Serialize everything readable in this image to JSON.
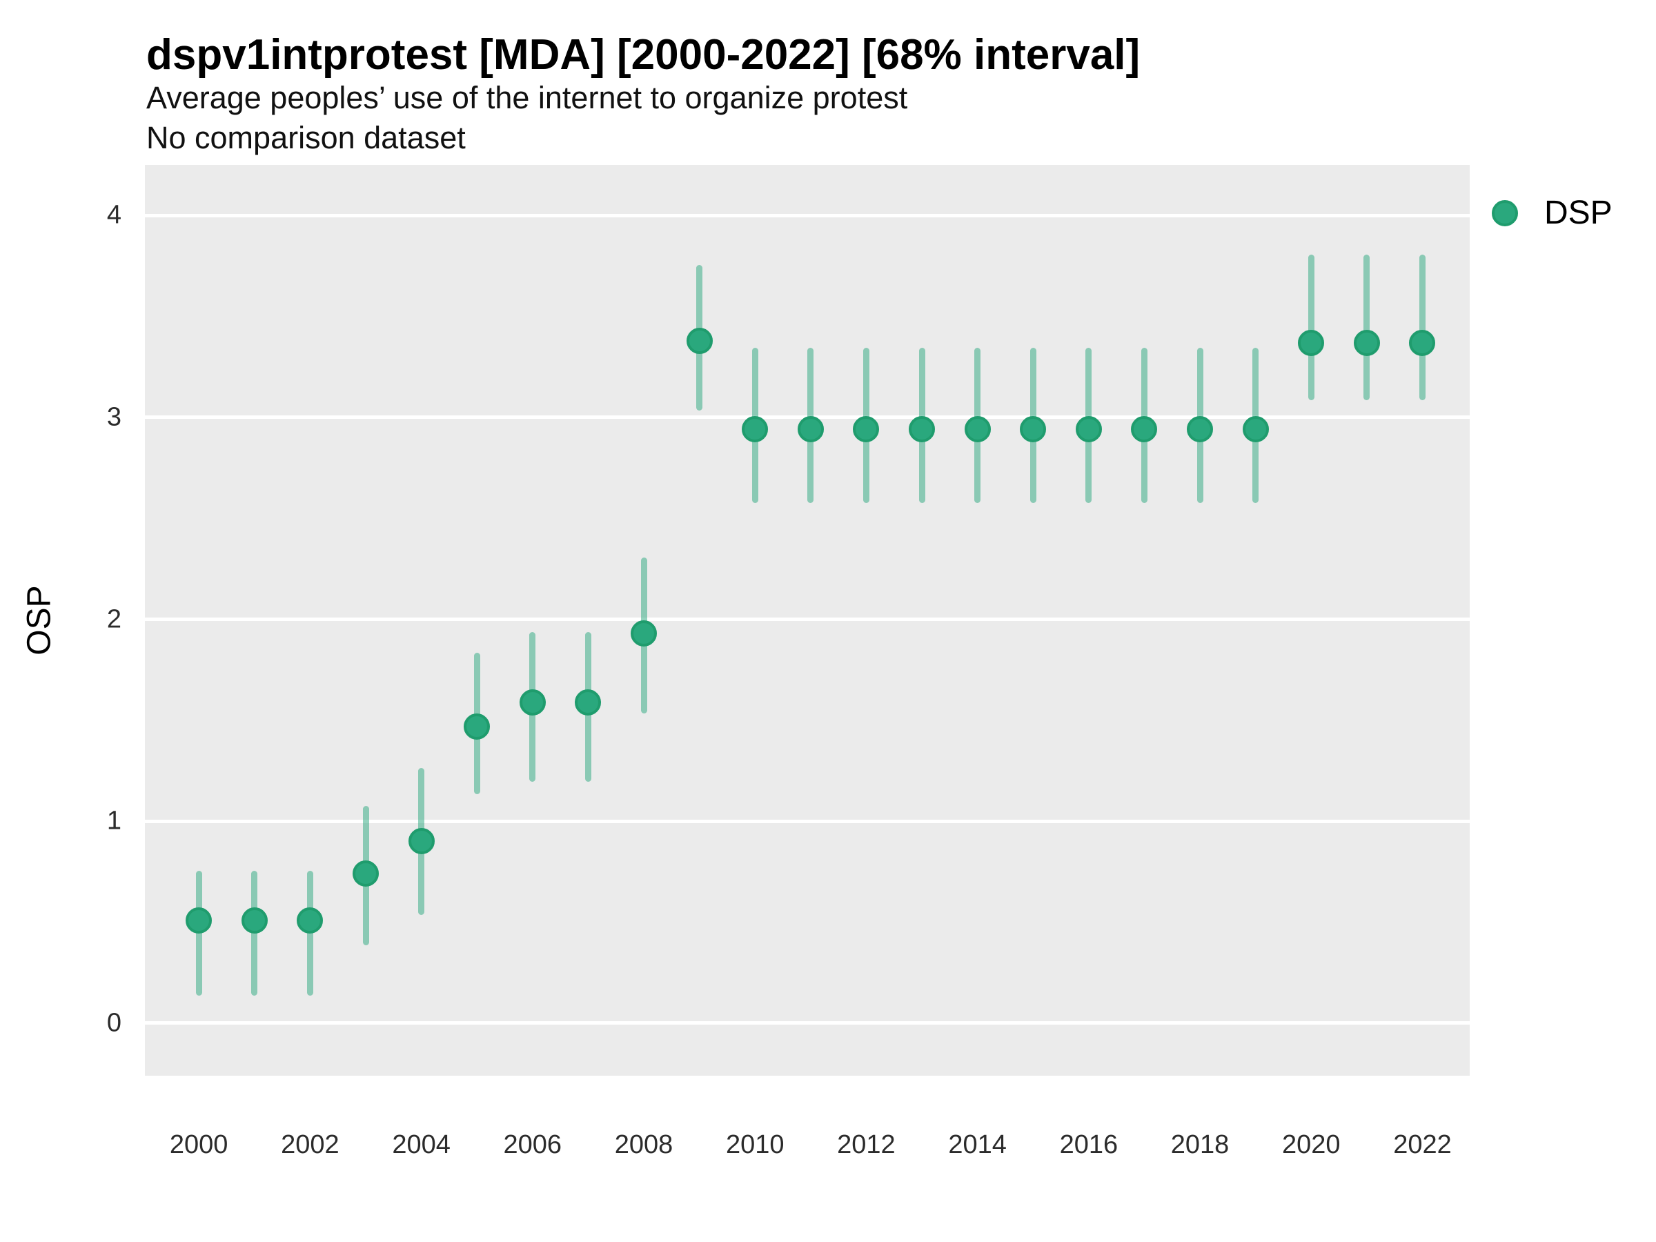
{
  "header": {
    "title": "dspv1intprotest [MDA] [2000-2022] [68% interval]",
    "subtitle": "Average peoples’ use of the internet to organize protest",
    "subtitle2": "No comparison dataset"
  },
  "legend": {
    "label": "DSP"
  },
  "axes": {
    "y_label": "OSP",
    "y_ticks": [
      "0",
      "1",
      "2",
      "3",
      "4"
    ],
    "x_ticks": [
      "2000",
      "2002",
      "2004",
      "2006",
      "2008",
      "2010",
      "2012",
      "2014",
      "2016",
      "2018",
      "2020",
      "2022"
    ]
  },
  "colors": {
    "panel_background": "#ebebeb",
    "gridline": "#ffffff",
    "point_fill": "#2aa87d",
    "point_border": "#1f9c6d",
    "interval": "rgba(42,168,125,0.5)"
  },
  "chart_data": {
    "type": "pointrange",
    "title": "dspv1intprotest [MDA] [2000-2022] [68% interval]",
    "subtitle": "Average peoples’ use of the internet to organize protest",
    "note": "No comparison dataset",
    "interval": "68%",
    "xlabel": "",
    "ylabel": "OSP",
    "legend_position": "right",
    "grid": "major-horizontal",
    "xlim": [
      1999.03,
      2022.85
    ],
    "ylim": [
      -0.26,
      4.25
    ],
    "y_gridlines": [
      0,
      1,
      2,
      3,
      4
    ],
    "x_tick_years": [
      2000,
      2002,
      2004,
      2006,
      2008,
      2010,
      2012,
      2014,
      2016,
      2018,
      2020,
      2022
    ],
    "x": [
      2000,
      2001,
      2002,
      2003,
      2004,
      2005,
      2006,
      2007,
      2008,
      2009,
      2010,
      2011,
      2012,
      2013,
      2014,
      2015,
      2016,
      2017,
      2018,
      2019,
      2020,
      2021,
      2022
    ],
    "series": [
      {
        "name": "DSP",
        "values": [
          0.51,
          0.51,
          0.51,
          0.74,
          0.9,
          1.47,
          1.59,
          1.59,
          1.93,
          3.38,
          2.94,
          2.94,
          2.94,
          2.94,
          2.94,
          2.94,
          2.94,
          2.94,
          2.94,
          2.94,
          3.37,
          3.37,
          3.37
        ],
        "low": [
          0.15,
          0.15,
          0.15,
          0.4,
          0.55,
          1.15,
          1.21,
          1.21,
          1.55,
          3.05,
          2.59,
          2.59,
          2.59,
          2.59,
          2.59,
          2.59,
          2.59,
          2.59,
          2.59,
          2.59,
          3.1,
          3.1,
          3.1
        ],
        "high": [
          0.74,
          0.74,
          0.74,
          1.06,
          1.25,
          1.82,
          1.92,
          1.92,
          2.29,
          3.74,
          3.33,
          3.33,
          3.33,
          3.33,
          3.33,
          3.33,
          3.33,
          3.33,
          3.33,
          3.33,
          3.79,
          3.79,
          3.79
        ]
      }
    ]
  }
}
